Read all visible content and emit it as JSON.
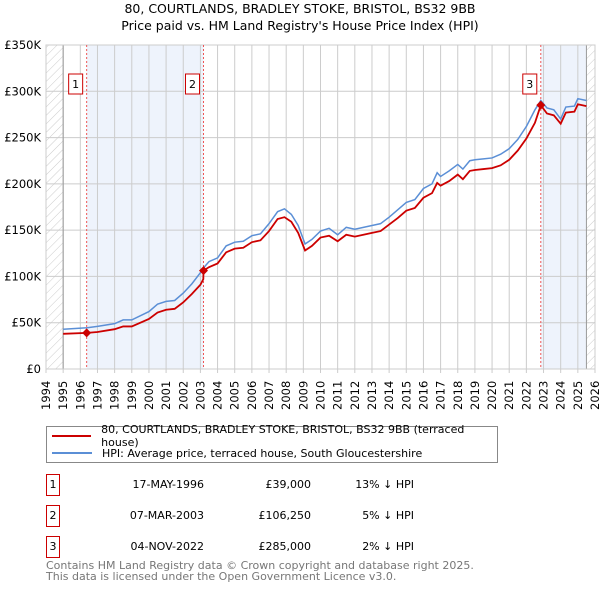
{
  "chart_data": {
    "type": "line",
    "title": "80, COURTLANDS, BRADLEY STOKE, BRISTOL, BS32 9BB",
    "subtitle": "Price paid vs. HM Land Registry's House Price Index (HPI)",
    "xlim": [
      1994,
      2026
    ],
    "ylim": [
      0,
      350000
    ],
    "y_ticks": [
      {
        "v": 0,
        "label": "£0"
      },
      {
        "v": 50000,
        "label": "£50K"
      },
      {
        "v": 100000,
        "label": "£100K"
      },
      {
        "v": 150000,
        "label": "£150K"
      },
      {
        "v": 200000,
        "label": "£200K"
      },
      {
        "v": 250000,
        "label": "£250K"
      },
      {
        "v": 300000,
        "label": "£300K"
      },
      {
        "v": 350000,
        "label": "£350K"
      }
    ],
    "x_ticks": [
      "1994",
      "1995",
      "1996",
      "1997",
      "1998",
      "1999",
      "2000",
      "2001",
      "2002",
      "2003",
      "2004",
      "2005",
      "2006",
      "2007",
      "2008",
      "2009",
      "2010",
      "2011",
      "2012",
      "2013",
      "2014",
      "2015",
      "2016",
      "2017",
      "2018",
      "2019",
      "2020",
      "2021",
      "2022",
      "2023",
      "2024",
      "2025",
      "2026"
    ],
    "data_range": [
      1995,
      2025.5
    ],
    "series": [
      {
        "name": "80, COURTLANDS, BRADLEY STOKE, BRISTOL, BS32 9BB (terraced house)",
        "color": "#cc0000",
        "x": [
          1995,
          1996.4,
          1997,
          1998,
          1998.5,
          1999,
          2000,
          2000.5,
          2001,
          2001.5,
          2002,
          2002.5,
          2003,
          2003.17,
          2003.18,
          2003.5,
          2004,
          2004.5,
          2005,
          2005.5,
          2006,
          2006.5,
          2007,
          2007.5,
          2007.9,
          2008.3,
          2008.7,
          2009.1,
          2009.5,
          2010,
          2010.5,
          2011,
          2011.5,
          2012,
          2012.5,
          2013,
          2013.5,
          2014,
          2014.5,
          2015,
          2015.5,
          2016,
          2016.5,
          2016.8,
          2017,
          2017.5,
          2018,
          2018.3,
          2018.7,
          2019,
          2019.5,
          2020,
          2020.5,
          2021,
          2021.5,
          2022,
          2022.5,
          2022.84,
          2023.2,
          2023.6,
          2024,
          2024.3,
          2024.8,
          2025,
          2025.5
        ],
        "y": [
          38000,
          39000,
          40000,
          43000,
          46000,
          46000,
          54000,
          61000,
          64000,
          65000,
          72000,
          81000,
          91000,
          97000,
          106250,
          110000,
          114000,
          126000,
          130000,
          131000,
          137000,
          139000,
          149000,
          162000,
          164000,
          159000,
          147000,
          128000,
          133000,
          142000,
          144000,
          138000,
          145000,
          143000,
          145000,
          147000,
          149000,
          156000,
          163000,
          171000,
          174000,
          185000,
          190000,
          201000,
          198000,
          203000,
          210000,
          205000,
          214000,
          215000,
          216000,
          217000,
          220000,
          226000,
          236000,
          249000,
          266000,
          285000,
          276000,
          274000,
          265000,
          277000,
          278000,
          286000,
          284000
        ]
      },
      {
        "name": "HPI: Average price, terraced house, South Gloucestershire",
        "color": "#5b8fd6",
        "x": [
          1995,
          1996.4,
          1997,
          1998,
          1998.5,
          1999,
          2000,
          2000.5,
          2001,
          2001.5,
          2002,
          2002.5,
          2003,
          2003.17,
          2003.5,
          2004,
          2004.5,
          2005,
          2005.5,
          2006,
          2006.5,
          2007,
          2007.5,
          2007.9,
          2008.3,
          2008.7,
          2009.1,
          2009.5,
          2010,
          2010.5,
          2011,
          2011.5,
          2012,
          2012.5,
          2013,
          2013.5,
          2014,
          2014.5,
          2015,
          2015.5,
          2016,
          2016.5,
          2016.8,
          2017,
          2017.5,
          2018,
          2018.3,
          2018.7,
          2019,
          2019.5,
          2020,
          2020.5,
          2021,
          2021.5,
          2022,
          2022.5,
          2022.84,
          2023.2,
          2023.6,
          2024,
          2024.3,
          2024.8,
          2025,
          2025.5
        ],
        "y": [
          43000,
          44500,
          46000,
          49000,
          53000,
          53000,
          62000,
          70000,
          73000,
          74000,
          82000,
          92000,
          104000,
          109000,
          116000,
          120000,
          133000,
          137000,
          138000,
          144000,
          146000,
          157000,
          170000,
          173000,
          167000,
          155000,
          135000,
          140000,
          149000,
          152000,
          145000,
          153000,
          151000,
          153000,
          155000,
          157000,
          164000,
          172000,
          180000,
          183000,
          195000,
          200000,
          212000,
          208000,
          214000,
          221000,
          216000,
          225000,
          226000,
          227000,
          228000,
          232000,
          238000,
          248000,
          262000,
          280000,
          290000,
          282000,
          280000,
          270000,
          283000,
          284000,
          292000,
          290000
        ]
      }
    ],
    "sales": [
      {
        "n": "1",
        "x": 1996.37,
        "y": 39000,
        "date": "17-MAY-1996",
        "price": "£39,000",
        "hpi": "13% ↓ HPI"
      },
      {
        "n": "2",
        "x": 2003.18,
        "y": 106250,
        "date": "07-MAR-2003",
        "price": "£106,250",
        "hpi": "5% ↓ HPI"
      },
      {
        "n": "3",
        "x": 2022.84,
        "y": 285000,
        "date": "04-NOV-2022",
        "price": "£285,000",
        "hpi": "2% ↓ HPI"
      }
    ]
  },
  "footer": {
    "line1": "Contains HM Land Registry data © Crown copyright and database right 2025.",
    "line2": "This data is licensed under the Open Government Licence v3.0."
  }
}
